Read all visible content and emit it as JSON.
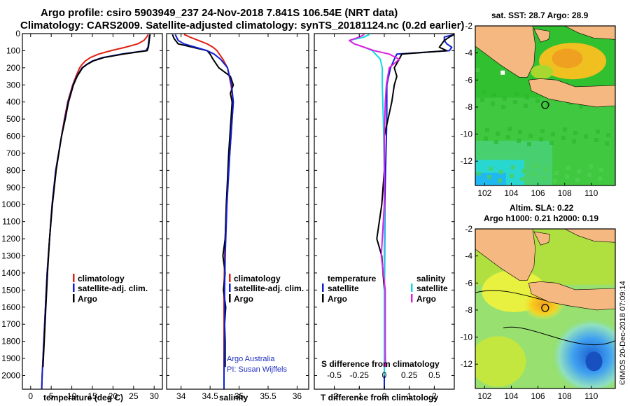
{
  "title": {
    "line1": "Argo profile: csiro 5903949_237 24-Nov-2018 7.841S 106.54E (NRT data)",
    "line2": "Climatology: CARS2009. Satellite-adjusted climatology: synTS_20181124.nc (0.2d earlier)"
  },
  "colors": {
    "climatology": "#e02010",
    "satellite": "#1020d0",
    "argo": "#000000",
    "sat_salinity": "#10d8e8",
    "argo_salinity_diff": "#e020e0"
  },
  "chart_data": [
    {
      "type": "line",
      "id": "temperature",
      "xlabel": "temperature (deg C)",
      "ylabel": "depth",
      "xlim": [
        -2,
        32
      ],
      "ylim": [
        2080,
        0
      ],
      "xticks": [
        0,
        5,
        10,
        15,
        20,
        25,
        30
      ],
      "yticks": [
        0,
        100,
        200,
        300,
        400,
        500,
        600,
        700,
        800,
        900,
        1000,
        1100,
        1200,
        1300,
        1400,
        1500,
        1600,
        1700,
        1800,
        1900,
        2000
      ],
      "legend": [
        "climatology",
        "satellite-adj. clim.",
        "Argo"
      ],
      "series": [
        {
          "name": "climatology",
          "depth": [
            5,
            20,
            40,
            60,
            80,
            100,
            120,
            140,
            160,
            180,
            200,
            250,
            300,
            400,
            500,
            600,
            800,
            1000,
            1200,
            1400,
            1600,
            1800,
            2000,
            2080
          ],
          "values": [
            28.6,
            28.2,
            27.5,
            26.0,
            23.0,
            19.5,
            16.5,
            14.5,
            13.3,
            12.5,
            11.9,
            11.0,
            10.2,
            9.0,
            8.2,
            7.5,
            6.1,
            5.2,
            4.6,
            4.0,
            3.6,
            3.2,
            2.8,
            2.7
          ]
        },
        {
          "name": "satellite",
          "depth": [
            5,
            20,
            40,
            60,
            80,
            100,
            120,
            140,
            160,
            180,
            200,
            250,
            300,
            400,
            500,
            600,
            800,
            1000,
            1200,
            1400,
            1600,
            1800,
            2000,
            2080
          ],
          "values": [
            29.0,
            28.8,
            28.7,
            28.6,
            28.5,
            28.0,
            22.0,
            17.5,
            15.0,
            13.6,
            12.5,
            11.2,
            10.3,
            9.1,
            8.3,
            7.5,
            6.1,
            5.2,
            4.6,
            4.0,
            3.6,
            3.2,
            2.8,
            2.7
          ]
        },
        {
          "name": "Argo",
          "depth": [
            5,
            20,
            40,
            60,
            80,
            100,
            120,
            140,
            160,
            180,
            200,
            250,
            300,
            400,
            500,
            600,
            800,
            1000,
            1200,
            1400,
            1600,
            1800,
            1950
          ],
          "values": [
            29.0,
            28.9,
            28.8,
            28.7,
            28.6,
            28.3,
            22.5,
            17.8,
            15.2,
            13.7,
            12.6,
            11.3,
            10.4,
            9.2,
            8.4,
            7.5,
            6.2,
            5.3,
            4.6,
            4.1,
            3.7,
            3.3,
            3.0
          ]
        }
      ]
    },
    {
      "type": "line",
      "id": "salinity",
      "xlabel": "salinity",
      "xlim": [
        33.75,
        36.2
      ],
      "xticks": [
        34,
        34.5,
        35,
        35.5,
        36
      ],
      "legend": [
        "climatology",
        "satellite-adj. clim.",
        "Argo"
      ],
      "credit": [
        "Argo Australia",
        "PI: Susan Wijffels"
      ],
      "series": [
        {
          "name": "climatology",
          "depth": [
            5,
            20,
            40,
            60,
            80,
            100,
            120,
            150,
            200,
            300,
            400,
            500,
            700,
            1000,
            1300,
            1500,
            1700,
            2000,
            2080
          ],
          "values": [
            34.05,
            34.15,
            34.3,
            34.45,
            34.55,
            34.62,
            34.66,
            34.72,
            34.8,
            34.86,
            34.9,
            34.88,
            34.84,
            34.78,
            34.75,
            34.74,
            34.74,
            34.74,
            34.74
          ]
        },
        {
          "name": "satellite",
          "depth": [
            5,
            20,
            40,
            60,
            80,
            100,
            120,
            150,
            200,
            300,
            400,
            500,
            700,
            1000,
            1300,
            1500,
            1700,
            2000,
            2080
          ],
          "values": [
            33.9,
            33.92,
            33.95,
            34.05,
            34.25,
            34.45,
            34.57,
            34.68,
            34.8,
            34.87,
            34.9,
            34.88,
            34.84,
            34.79,
            34.76,
            34.75,
            34.75,
            34.74,
            34.74
          ]
        },
        {
          "name": "Argo",
          "depth": [
            5,
            30,
            60,
            80,
            100,
            120,
            150,
            200,
            250,
            300,
            350,
            400,
            500,
            700,
            1000,
            1200,
            1300,
            1400,
            1500,
            1600,
            1700,
            1800,
            1950
          ],
          "values": [
            33.85,
            33.88,
            33.95,
            34.2,
            34.45,
            34.5,
            34.55,
            34.65,
            34.85,
            34.9,
            34.85,
            34.88,
            34.86,
            34.82,
            34.78,
            34.76,
            34.72,
            34.76,
            34.73,
            34.77,
            34.75,
            34.76,
            34.76
          ]
        }
      ]
    },
    {
      "type": "line",
      "id": "differences",
      "xlabel": "T difference from climatology",
      "xlabel2": "S difference from climatology",
      "xlim": [
        -2.8,
        2.8
      ],
      "xticks": [
        -2,
        -1,
        0,
        1,
        2
      ],
      "xticks_s": [
        -0.5,
        -0.25,
        0,
        0.25,
        0.5
      ],
      "legend_t_title": "temperature",
      "legend_s_title": "salinity",
      "legend_t": [
        "satellite",
        "Argo"
      ],
      "legend_s": [
        "satellite",
        "Argo"
      ],
      "series": [
        {
          "name": "T satellite",
          "depth": [
            5,
            20,
            40,
            60,
            80,
            100,
            120,
            150,
            200,
            300,
            500,
            800,
            1000,
            1300,
            1600,
            1900,
            2080
          ],
          "values": [
            2.8,
            2.4,
            2.4,
            2.5,
            2.7,
            2.6,
            0.5,
            0.4,
            0.25,
            0.1,
            0.1,
            0.05,
            0.02,
            0.01,
            0.0,
            0.0,
            0.0
          ]
        },
        {
          "name": "T Argo",
          "depth": [
            5,
            20,
            40,
            60,
            80,
            100,
            120,
            150,
            200,
            250,
            300,
            400,
            600,
            800,
            1000,
            1200,
            1300,
            1500,
            1700,
            1950
          ],
          "values": [
            2.8,
            2.6,
            2.4,
            2.3,
            2.2,
            2.5,
            0.7,
            0.6,
            0.4,
            0.5,
            0.4,
            0.3,
            0.0,
            0.0,
            -0.1,
            -0.3,
            -0.1,
            0.0,
            0.0,
            0.05
          ]
        },
        {
          "name": "S satellite",
          "depth": [
            5,
            20,
            40,
            60,
            80,
            100,
            150,
            200,
            300,
            500,
            800,
            1200,
            1600,
            2000
          ],
          "values": [
            -0.15,
            -0.2,
            -0.35,
            -0.3,
            -0.2,
            -0.12,
            -0.04,
            -0.02,
            -0.02,
            -0.01,
            0.0,
            0.0,
            0.0,
            0.0
          ]
        },
        {
          "name": "S Argo",
          "depth": [
            5,
            20,
            40,
            60,
            80,
            100,
            120,
            150,
            200,
            300,
            400,
            600,
            1000,
            1300,
            1500,
            1700,
            1950
          ],
          "values": [
            -0.2,
            -0.25,
            -0.35,
            -0.3,
            -0.2,
            -0.1,
            0.05,
            0.15,
            0.05,
            0.02,
            0.01,
            0.0,
            0.0,
            -0.03,
            0.01,
            0.01,
            0.01
          ]
        }
      ]
    },
    {
      "type": "heatmap",
      "id": "sst_map",
      "title": "sat. SST: 28.7 Argo: 28.9",
      "xlim": [
        101.3,
        111.8
      ],
      "ylim": [
        -13.8,
        -2
      ],
      "xticks": [
        102,
        104,
        106,
        108,
        110
      ],
      "yticks": [
        -2,
        -4,
        -6,
        -8,
        -10,
        -12
      ],
      "argo_position": [
        106.54,
        -7.841
      ]
    },
    {
      "type": "heatmap",
      "id": "sla_map",
      "title": "Altim. SLA: 0.22",
      "subtitle": "Argo h1000: 0.21 h2000: 0.19",
      "xlim": [
        101.3,
        111.8
      ],
      "ylim": [
        -13.8,
        -2
      ],
      "xticks": [
        102,
        104,
        106,
        108,
        110
      ],
      "yticks": [
        -2,
        -4,
        -6,
        -8,
        -10,
        -12
      ],
      "argo_position": [
        106.54,
        -7.841
      ]
    }
  ],
  "footer": {
    "stamp": "©IMOS 20-Dec-2018 07:09:14"
  }
}
